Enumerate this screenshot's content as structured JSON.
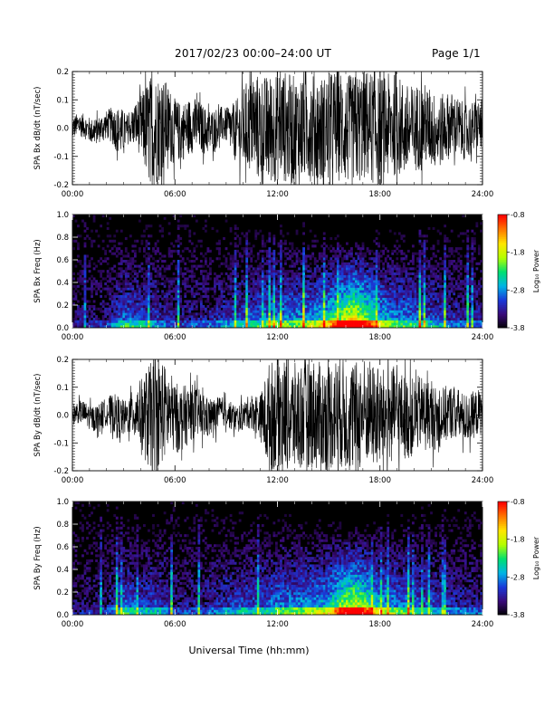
{
  "header": {
    "title": "2017/02/23  00:00–24:00 UT",
    "page": "Page 1/1"
  },
  "xlabel": "Universal Time (hh:mm)",
  "x_ticks": [
    "00:00",
    "06:00",
    "12:00",
    "18:00",
    "24:00"
  ],
  "colorbar": {
    "label": "Log₁₀ Power",
    "ticks": [
      "-0.8",
      "-1.8",
      "-2.8",
      "-3.8"
    ],
    "range": [
      -3.8,
      -0.8
    ],
    "colors": [
      "#000000",
      "#3a0a78",
      "#1a38d8",
      "#00b4e6",
      "#00e070",
      "#b4ff00",
      "#ffe600",
      "#ff7800",
      "#ff0000"
    ]
  },
  "chart_data": [
    {
      "type": "line",
      "ylabel": "SPA Bx dB/dt (nT/sec)",
      "x_range_hours": [
        0,
        24
      ],
      "ylim": [
        -0.2,
        0.2
      ],
      "y_ticks": [
        "-0.2",
        "-0.1",
        "0.0",
        "0.1",
        "0.2"
      ],
      "series_color": "#000000",
      "envelope": {
        "hours": [
          0,
          2,
          2.8,
          3.3,
          4,
          4.5,
          5,
          6,
          7,
          8,
          9,
          10,
          11,
          12,
          13,
          14,
          15,
          16,
          17,
          18,
          19,
          20,
          21,
          22,
          23,
          24
        ],
        "amplitude": [
          0.04,
          0.05,
          0.09,
          0.05,
          0.11,
          0.2,
          0.2,
          0.11,
          0.1,
          0.08,
          0.06,
          0.15,
          0.2,
          0.2,
          0.2,
          0.2,
          0.2,
          0.2,
          0.2,
          0.2,
          0.18,
          0.16,
          0.14,
          0.12,
          0.1,
          0.09
        ]
      }
    },
    {
      "type": "heatmap",
      "ylabel": "SPA Bx Freq (Hz)",
      "x_range_hours": [
        0,
        24
      ],
      "ylim": [
        0.0,
        1.0
      ],
      "y_ticks": [
        "0.0",
        "0.2",
        "0.4",
        "0.6",
        "0.8",
        "1.0"
      ],
      "color_range": [
        -3.8,
        -0.8
      ],
      "activity": {
        "hours": [
          0,
          2,
          3,
          4,
          5,
          6,
          8,
          10,
          11,
          12,
          13,
          14,
          15,
          16,
          16.5,
          17,
          18,
          19,
          20,
          21,
          22,
          23,
          24
        ],
        "level": [
          0.1,
          0.15,
          0.35,
          0.3,
          0.25,
          0.15,
          0.2,
          0.3,
          0.35,
          0.4,
          0.4,
          0.45,
          0.55,
          0.85,
          0.9,
          0.8,
          0.5,
          0.4,
          0.35,
          0.3,
          0.25,
          0.2,
          0.2
        ]
      }
    },
    {
      "type": "line",
      "ylabel": "SPA By dB/dt (nT/sec)",
      "x_range_hours": [
        0,
        24
      ],
      "ylim": [
        -0.2,
        0.2
      ],
      "y_ticks": [
        "-0.2",
        "-0.1",
        "0.0",
        "0.1",
        "0.2"
      ],
      "series_color": "#000000",
      "envelope": {
        "hours": [
          0,
          2,
          2.6,
          3.2,
          4,
          4.5,
          5,
          6,
          7,
          8,
          9,
          10,
          11,
          11.5,
          12,
          13,
          14,
          15,
          16,
          17,
          18,
          19,
          20,
          21,
          22,
          23,
          24
        ],
        "amplitude": [
          0.04,
          0.05,
          0.08,
          0.06,
          0.12,
          0.2,
          0.2,
          0.13,
          0.1,
          0.07,
          0.05,
          0.05,
          0.08,
          0.2,
          0.2,
          0.2,
          0.2,
          0.2,
          0.2,
          0.2,
          0.18,
          0.16,
          0.14,
          0.12,
          0.1,
          0.09,
          0.08
        ]
      }
    },
    {
      "type": "heatmap",
      "ylabel": "SPA By Freq (Hz)",
      "x_range_hours": [
        0,
        24
      ],
      "ylim": [
        0.0,
        1.0
      ],
      "y_ticks": [
        "0.0",
        "0.2",
        "0.4",
        "0.6",
        "0.8",
        "1.0"
      ],
      "color_range": [
        -3.8,
        -0.8
      ],
      "activity": {
        "hours": [
          0,
          2,
          3,
          4,
          5,
          6,
          8,
          10,
          11,
          12,
          13,
          14,
          15,
          16,
          16.5,
          17,
          18,
          19,
          20,
          21,
          22,
          23,
          24
        ],
        "level": [
          0.1,
          0.15,
          0.35,
          0.3,
          0.3,
          0.15,
          0.2,
          0.3,
          0.3,
          0.4,
          0.4,
          0.45,
          0.5,
          0.8,
          0.85,
          0.75,
          0.5,
          0.4,
          0.35,
          0.3,
          0.25,
          0.2,
          0.2
        ]
      }
    }
  ]
}
